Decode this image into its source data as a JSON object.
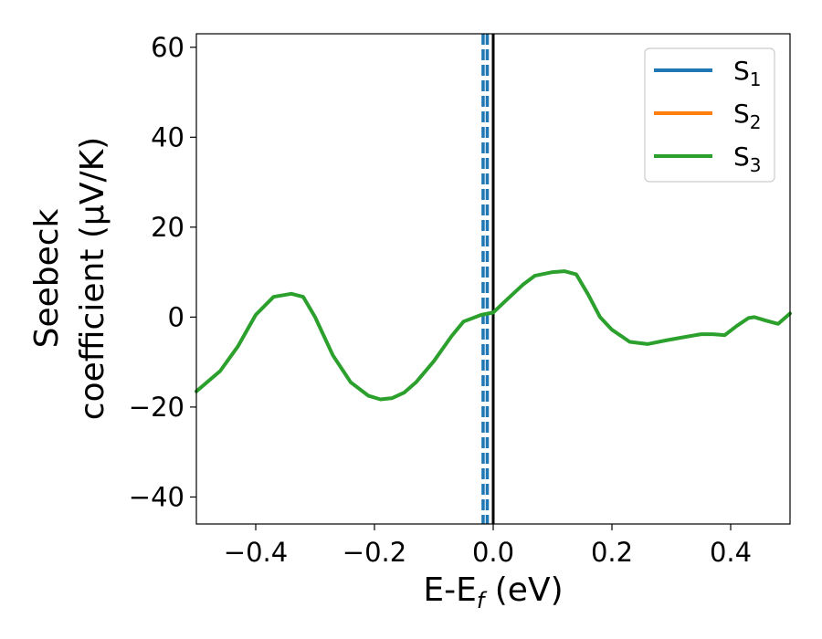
{
  "chart_data": {
    "type": "line",
    "xlabel": {
      "main": "E-E",
      "sub": "f",
      "unit": " (eV)"
    },
    "ylabel": {
      "line1": "Seebeck",
      "line2": "coefficient  (μV/K)"
    },
    "xlim": [
      -0.5,
      0.5
    ],
    "ylim": [
      -46,
      63
    ],
    "xticks": [
      -0.4,
      -0.2,
      0.0,
      0.2,
      0.4
    ],
    "xtick_labels": [
      "−0.4",
      "−0.2",
      "0.0",
      "0.2",
      "0.4"
    ],
    "yticks": [
      -40,
      -20,
      0,
      20,
      40,
      60
    ],
    "ytick_labels": [
      "−40",
      "−20",
      "0",
      "20",
      "40",
      "60"
    ],
    "grid": false,
    "legend_position": "top-right",
    "series": [
      {
        "name": "S",
        "sub": "1",
        "color": "#1f77b4",
        "x": [],
        "y": []
      },
      {
        "name": "S",
        "sub": "2",
        "color": "#ff7f0e",
        "x": [],
        "y": []
      },
      {
        "name": "S",
        "sub": "3",
        "color": "#2ca02c",
        "x": [
          -0.5,
          -0.46,
          -0.43,
          -0.4,
          -0.37,
          -0.34,
          -0.32,
          -0.3,
          -0.27,
          -0.24,
          -0.21,
          -0.19,
          -0.17,
          -0.15,
          -0.13,
          -0.1,
          -0.07,
          -0.05,
          -0.02,
          0.0,
          0.02,
          0.05,
          0.07,
          0.1,
          0.12,
          0.14,
          0.16,
          0.18,
          0.2,
          0.23,
          0.26,
          0.29,
          0.32,
          0.35,
          0.37,
          0.39,
          0.41,
          0.43,
          0.44,
          0.46,
          0.48,
          0.5
        ],
        "y": [
          -16.5,
          -12,
          -6.5,
          0.5,
          4.5,
          5.2,
          4.5,
          0,
          -8.5,
          -14.5,
          -17.5,
          -18.3,
          -18,
          -16.8,
          -14.5,
          -9.8,
          -4.2,
          -1,
          0.5,
          1,
          3.5,
          7.2,
          9.2,
          10,
          10.2,
          9.5,
          5,
          0,
          -2.8,
          -5.5,
          -6,
          -5.2,
          -4.5,
          -3.8,
          -3.8,
          -4,
          -2,
          -0.2,
          0,
          -0.8,
          -1.5,
          0.8
        ]
      }
    ],
    "vertical_lines": [
      {
        "x": -0.017,
        "color": "#1f77b4",
        "style": "dashed"
      },
      {
        "x": -0.01,
        "color": "#1f77b4",
        "style": "dashed"
      },
      {
        "x": 0.0,
        "color": "#000000",
        "style": "solid"
      }
    ]
  }
}
